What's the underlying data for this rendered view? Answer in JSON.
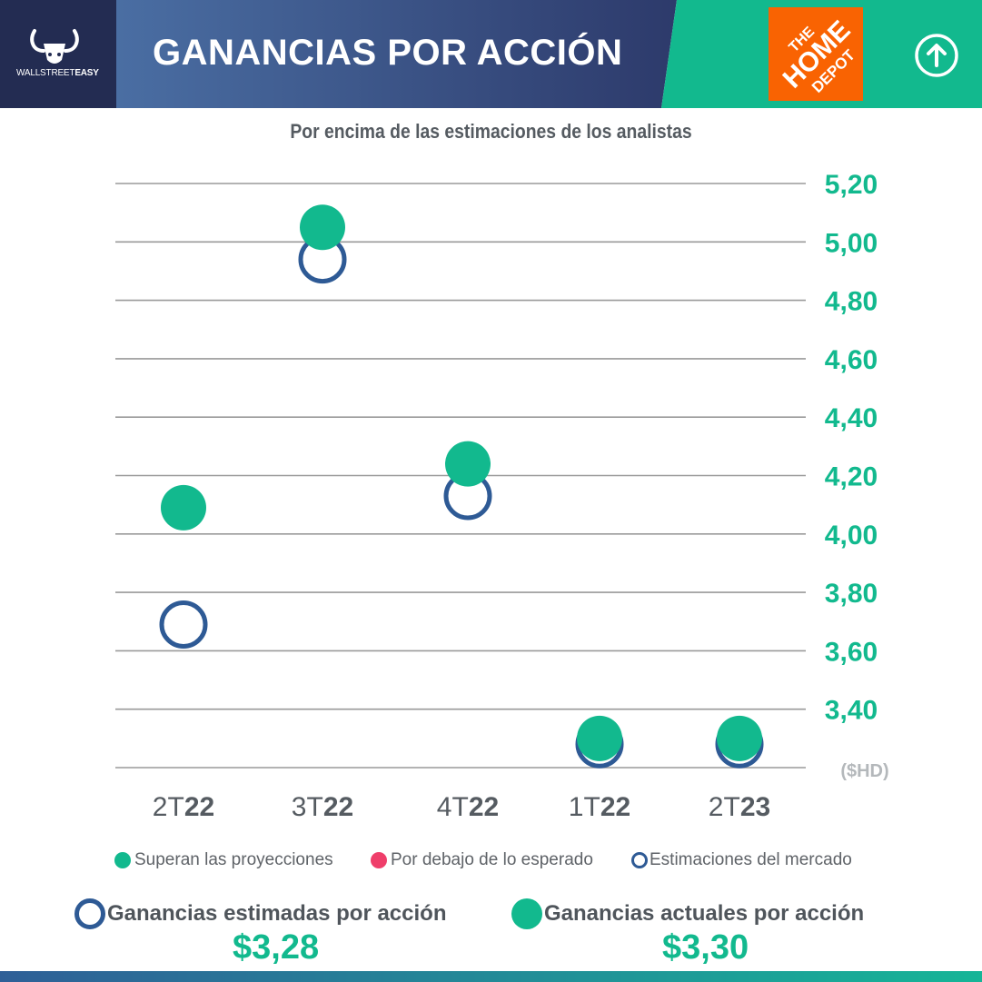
{
  "header": {
    "brand": {
      "name_light": "WALLSTREET",
      "name_bold": "EASY"
    },
    "title": "GANANCIAS POR ACCIÓN",
    "logo": {
      "line1": "THE",
      "line2": "HOME",
      "line3": "DEPOT"
    },
    "up_icon": "arrow-up-circle-icon"
  },
  "colors": {
    "accent_green": "#12b98e",
    "navy": "#2e3a6e",
    "estimate_blue": "#2e5a95",
    "below_red": "#ef3e6a",
    "logo_orange": "#f96302",
    "grid": "#9a9a9a"
  },
  "chart_data": {
    "type": "scatter",
    "title": "Por encima de las estimaciones de los analistas",
    "categories": [
      "2T22",
      "3T22",
      "4T22",
      "1T22",
      "2T23"
    ],
    "category_labels": [
      {
        "prefix": "2T",
        "year": "22"
      },
      {
        "prefix": "3T",
        "year": "22"
      },
      {
        "prefix": "4T",
        "year": "22"
      },
      {
        "prefix": "1T",
        "year": "22"
      },
      {
        "prefix": "2T",
        "year": "23"
      }
    ],
    "series": [
      {
        "name": "Estimaciones del mercado",
        "values": [
          3.69,
          4.94,
          4.13,
          3.28,
          3.28
        ]
      },
      {
        "name": "Superan las proyecciones",
        "values": [
          4.09,
          5.05,
          4.24,
          3.3,
          3.3
        ]
      }
    ],
    "y_ticks": [
      "5,20",
      "5,00",
      "4,80",
      "4,60",
      "4,40",
      "4,20",
      "4,00",
      "3,80",
      "3,60",
      "3,40"
    ],
    "y_tick_values": [
      5.2,
      5.0,
      4.8,
      4.6,
      4.4,
      4.2,
      4.0,
      3.8,
      3.6,
      3.4
    ],
    "ylim": [
      3.2,
      5.2
    ],
    "yaxis_position": "right",
    "grid": true,
    "unit_label": "($HD)",
    "legend": [
      "Superan las proyecciones",
      "Por debajo de lo esperado",
      "Estimaciones del mercado"
    ]
  },
  "summary": {
    "estimated_label": "Ganancias estimadas por acción",
    "estimated_value": "$3,28",
    "actual_label": "Ganancias actuales por acción",
    "actual_value": "$3,30"
  }
}
